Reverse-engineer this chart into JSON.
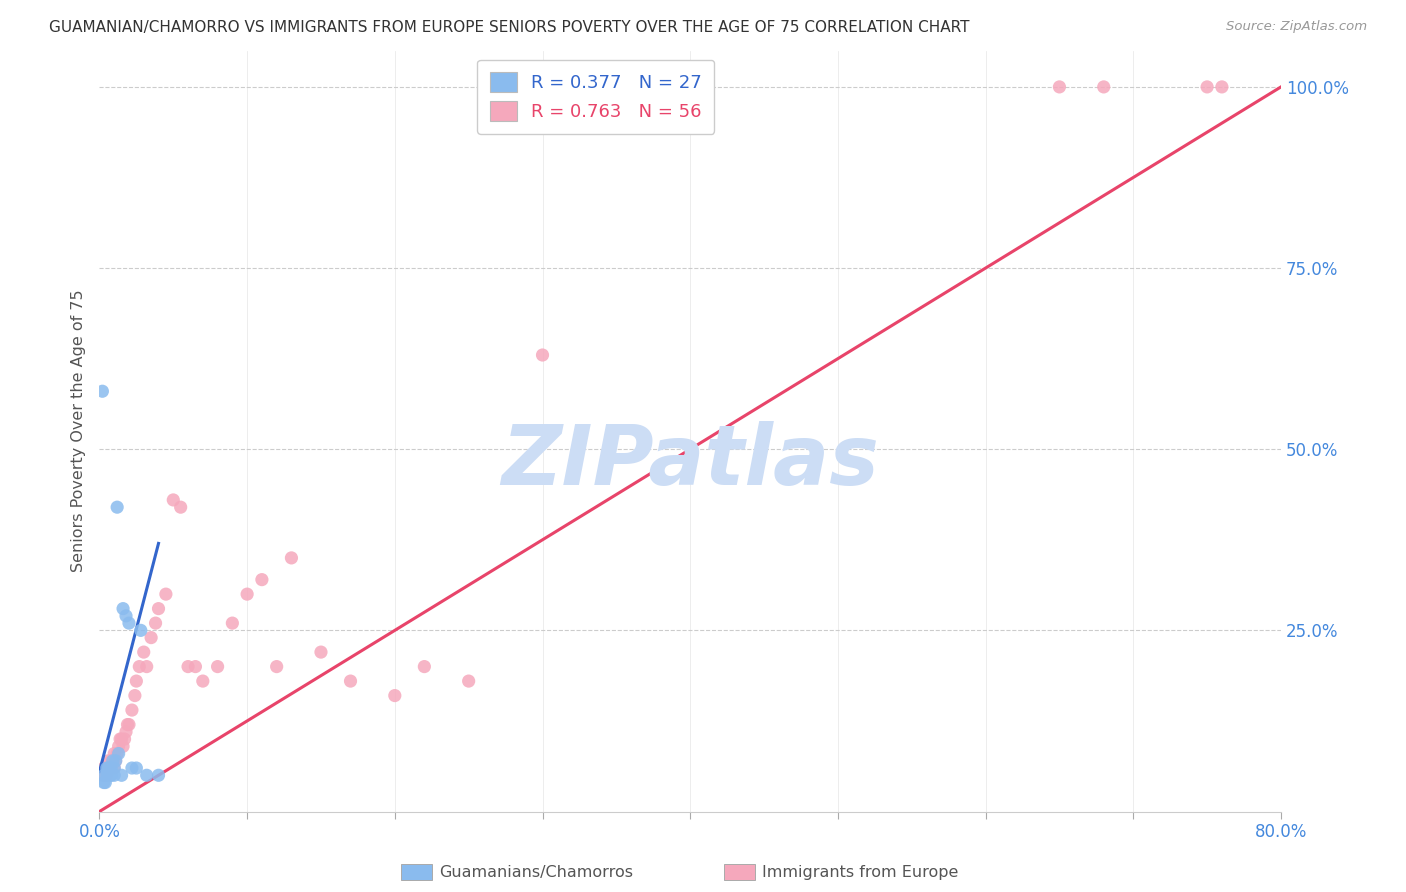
{
  "title": "GUAMANIAN/CHAMORRO VS IMMIGRANTS FROM EUROPE SENIORS POVERTY OVER THE AGE OF 75 CORRELATION CHART",
  "source": "Source: ZipAtlas.com",
  "ylabel": "Seniors Poverty Over the Age of 75",
  "xlim": [
    0,
    0.8
  ],
  "ylim": [
    0,
    1.05
  ],
  "legend_r_blue": "0.377",
  "legend_n_blue": "27",
  "legend_r_pink": "0.763",
  "legend_n_pink": "56",
  "blue_color": "#8abbee",
  "pink_color": "#f5a8bc",
  "blue_line_color": "#3366cc",
  "pink_line_color": "#e8446a",
  "diag_color": "#aaaaaa",
  "watermark": "ZIPatlas",
  "watermark_color": "#ccddf5",
  "right_tick_color": "#4488dd",
  "background_color": "#ffffff",
  "grid_color": "#cccccc",
  "blue_scatter_x": [
    0.002,
    0.003,
    0.003,
    0.004,
    0.005,
    0.005,
    0.006,
    0.006,
    0.007,
    0.007,
    0.008,
    0.008,
    0.009,
    0.01,
    0.01,
    0.011,
    0.012,
    0.013,
    0.015,
    0.016,
    0.018,
    0.02,
    0.022,
    0.025,
    0.028,
    0.032,
    0.04
  ],
  "blue_scatter_y": [
    0.58,
    0.04,
    0.05,
    0.04,
    0.05,
    0.06,
    0.05,
    0.06,
    0.06,
    0.05,
    0.06,
    0.05,
    0.07,
    0.05,
    0.06,
    0.07,
    0.42,
    0.08,
    0.05,
    0.28,
    0.27,
    0.26,
    0.06,
    0.06,
    0.25,
    0.05,
    0.05
  ],
  "pink_scatter_x": [
    0.002,
    0.003,
    0.003,
    0.004,
    0.005,
    0.005,
    0.006,
    0.006,
    0.007,
    0.008,
    0.008,
    0.009,
    0.01,
    0.01,
    0.011,
    0.012,
    0.013,
    0.014,
    0.015,
    0.016,
    0.017,
    0.018,
    0.019,
    0.02,
    0.022,
    0.024,
    0.025,
    0.027,
    0.03,
    0.032,
    0.035,
    0.038,
    0.04,
    0.045,
    0.05,
    0.055,
    0.06,
    0.065,
    0.07,
    0.08,
    0.09,
    0.1,
    0.11,
    0.12,
    0.13,
    0.15,
    0.17,
    0.2,
    0.22,
    0.25,
    0.3,
    0.38,
    0.65,
    0.68,
    0.75,
    0.76
  ],
  "pink_scatter_y": [
    0.05,
    0.05,
    0.06,
    0.05,
    0.06,
    0.05,
    0.06,
    0.07,
    0.06,
    0.07,
    0.06,
    0.07,
    0.08,
    0.06,
    0.07,
    0.08,
    0.09,
    0.1,
    0.1,
    0.09,
    0.1,
    0.11,
    0.12,
    0.12,
    0.14,
    0.16,
    0.18,
    0.2,
    0.22,
    0.2,
    0.24,
    0.26,
    0.28,
    0.3,
    0.43,
    0.42,
    0.2,
    0.2,
    0.18,
    0.2,
    0.26,
    0.3,
    0.32,
    0.2,
    0.35,
    0.22,
    0.18,
    0.16,
    0.2,
    0.18,
    0.63,
    1.0,
    1.0,
    1.0,
    1.0,
    1.0
  ],
  "blue_line_x": [
    0.0,
    0.04
  ],
  "blue_line_y": [
    0.055,
    0.37
  ],
  "pink_line_x": [
    0.0,
    0.8
  ],
  "pink_line_y": [
    0.0,
    1.0
  ],
  "diag_line_x": [
    0.0,
    0.8
  ],
  "diag_line_y": [
    0.0,
    1.0
  ]
}
